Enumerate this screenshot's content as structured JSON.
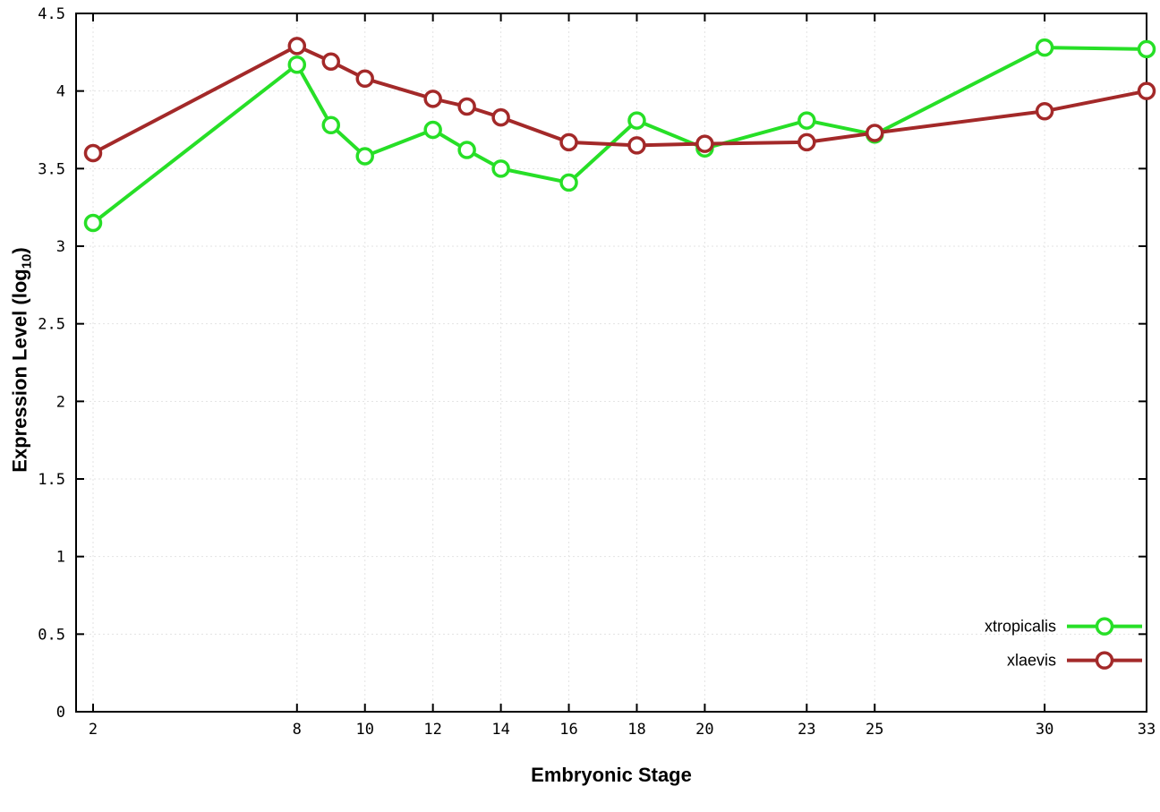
{
  "chart_data": {
    "type": "line",
    "title": "",
    "xlabel": "Embryonic Stage",
    "ylabel": "Expression Level (log10)",
    "ylabel_parts": {
      "prefix": "Expression Level (log",
      "sub": "10",
      "suffix": ")"
    },
    "x": [
      2,
      8,
      9,
      10,
      12,
      13,
      14,
      16,
      18,
      20,
      23,
      25,
      30,
      33
    ],
    "series": [
      {
        "name": "xtropicalis",
        "color": "#27df27",
        "values": [
          3.15,
          4.17,
          3.78,
          3.58,
          3.75,
          3.62,
          3.5,
          3.41,
          3.81,
          3.63,
          3.81,
          3.72,
          4.28,
          4.27
        ]
      },
      {
        "name": "xlaevis",
        "color": "#a32929",
        "values": [
          3.6,
          4.29,
          4.19,
          4.08,
          3.95,
          3.9,
          3.83,
          3.67,
          3.65,
          3.66,
          3.67,
          3.73,
          3.87,
          4.0
        ]
      }
    ],
    "xlim": [
      1.5,
      33
    ],
    "ylim": [
      0,
      4.5
    ],
    "xticks": [
      2,
      8,
      10,
      12,
      14,
      16,
      18,
      20,
      23,
      25,
      30,
      33
    ],
    "yticks": [
      0,
      0.5,
      1,
      1.5,
      2,
      2.5,
      3,
      3.5,
      4,
      4.5
    ],
    "ytick_labels": [
      "0",
      "0.5",
      "1",
      "1.5",
      "2",
      "2.5",
      "3",
      "3.5",
      "4",
      "4.5"
    ],
    "grid": true,
    "legend_position": "bottom-right",
    "marker": "open-circle",
    "background_color": "#ffffff",
    "axis_color": "#000000"
  }
}
